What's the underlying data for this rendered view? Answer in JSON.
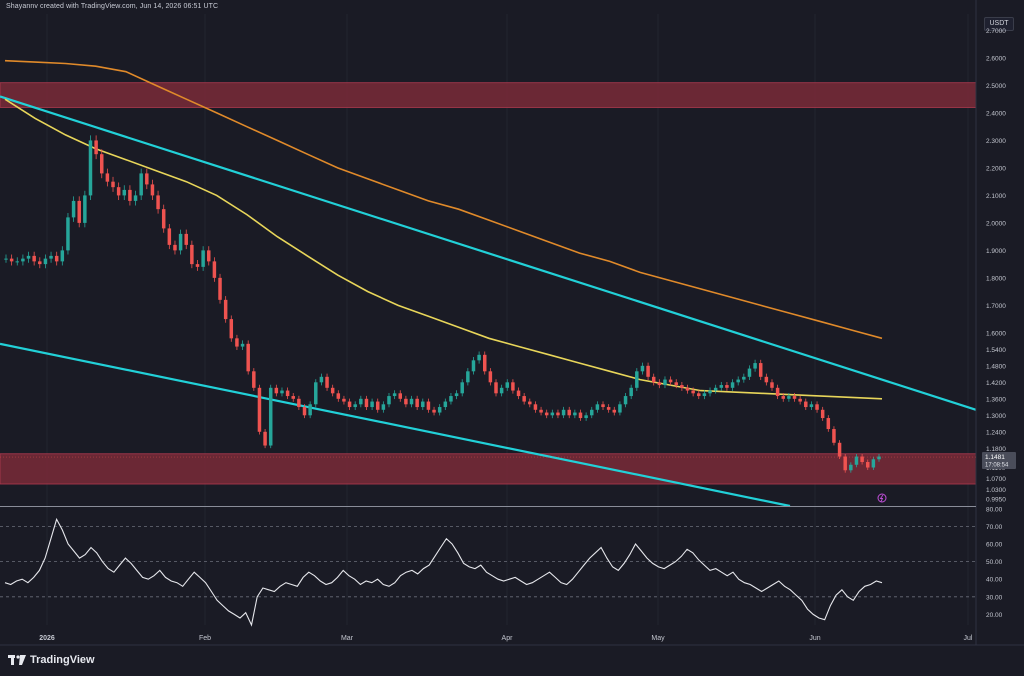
{
  "header": {
    "credit": "Shayannv created with TradingView.com, Jun 14, 2026 06:51 UTC",
    "currency": "USDT"
  },
  "brand": {
    "name": "TradingView"
  },
  "price_panel": {
    "last_price": "1.1481",
    "countdown": "17:08:54",
    "colors": {
      "up": "#26a69a",
      "down": "#ef5350",
      "zone": "#7a2a38",
      "channel": "#22d1d8",
      "ma_fast": "#e8d65a",
      "ma_slow": "#e08a2a"
    }
  },
  "chart_data": [
    {
      "type": "candlestick",
      "title": "",
      "x_ticks": [
        "2026",
        "Feb",
        "Mar",
        "Apr",
        "May",
        "Jun",
        "Jul"
      ],
      "y_ticks": [
        "2.7000",
        "2.6000",
        "2.5000",
        "2.4000",
        "2.3000",
        "2.2000",
        "2.1000",
        "2.0000",
        "1.9000",
        "1.8000",
        "1.7000",
        "1.6000",
        "1.5400",
        "1.4800",
        "1.4200",
        "1.3600",
        "1.3000",
        "1.2400",
        "1.1800",
        "1.1100",
        "1.0700",
        "1.0300",
        "0.9950"
      ],
      "ylim": [
        0.97,
        2.76
      ],
      "zones": [
        {
          "name": "supply",
          "low": 2.42,
          "high": 2.51
        },
        {
          "name": "support",
          "low": 1.05,
          "high": 1.16
        }
      ],
      "close_series": [
        1.87,
        1.86,
        1.86,
        1.87,
        1.88,
        1.86,
        1.85,
        1.87,
        1.88,
        1.86,
        1.9,
        2.02,
        2.08,
        2.0,
        2.1,
        2.3,
        2.25,
        2.18,
        2.15,
        2.13,
        2.1,
        2.12,
        2.08,
        2.1,
        2.18,
        2.14,
        2.1,
        2.05,
        1.98,
        1.92,
        1.9,
        1.96,
        1.92,
        1.85,
        1.84,
        1.9,
        1.86,
        1.8,
        1.72,
        1.65,
        1.58,
        1.55,
        1.56,
        1.46,
        1.4,
        1.24,
        1.19,
        1.4,
        1.38,
        1.39,
        1.37,
        1.36,
        1.33,
        1.3,
        1.34,
        1.42,
        1.44,
        1.4,
        1.38,
        1.36,
        1.35,
        1.33,
        1.34,
        1.36,
        1.33,
        1.35,
        1.32,
        1.34,
        1.37,
        1.38,
        1.36,
        1.34,
        1.36,
        1.33,
        1.35,
        1.32,
        1.31,
        1.33,
        1.35,
        1.37,
        1.38,
        1.42,
        1.46,
        1.5,
        1.52,
        1.46,
        1.42,
        1.38,
        1.4,
        1.42,
        1.39,
        1.37,
        1.35,
        1.34,
        1.32,
        1.31,
        1.3,
        1.31,
        1.3,
        1.32,
        1.3,
        1.31,
        1.29,
        1.3,
        1.32,
        1.34,
        1.33,
        1.32,
        1.31,
        1.34,
        1.37,
        1.4,
        1.46,
        1.48,
        1.44,
        1.42,
        1.41,
        1.43,
        1.42,
        1.41,
        1.4,
        1.39,
        1.38,
        1.37,
        1.38,
        1.39,
        1.4,
        1.41,
        1.4,
        1.42,
        1.43,
        1.44,
        1.47,
        1.49,
        1.44,
        1.42,
        1.4,
        1.37,
        1.36,
        1.37,
        1.36,
        1.35,
        1.33,
        1.34,
        1.32,
        1.29,
        1.25,
        1.2,
        1.15,
        1.1,
        1.12,
        1.15,
        1.13,
        1.11,
        1.14,
        1.15
      ],
      "ma_fast": [
        2.45,
        2.38,
        2.32,
        2.27,
        2.23,
        2.19,
        2.15,
        2.1,
        2.03,
        1.95,
        1.88,
        1.81,
        1.75,
        1.7,
        1.66,
        1.62,
        1.58,
        1.55,
        1.52,
        1.49,
        1.46,
        1.43,
        1.41,
        1.39,
        1.385,
        1.38,
        1.375,
        1.37,
        1.365,
        1.36
      ],
      "ma_slow": [
        2.59,
        2.585,
        2.58,
        2.57,
        2.55,
        2.5,
        2.45,
        2.4,
        2.35,
        2.3,
        2.25,
        2.2,
        2.16,
        2.12,
        2.08,
        2.05,
        2.01,
        1.97,
        1.93,
        1.89,
        1.86,
        1.82,
        1.79,
        1.76,
        1.73,
        1.7,
        1.67,
        1.64,
        1.61,
        1.58
      ],
      "channel_upper": [
        [
          0,
          2.46
        ],
        [
          976,
          1.32
        ]
      ],
      "channel_lower": [
        [
          0,
          1.56
        ],
        [
          790,
          0.97
        ]
      ]
    },
    {
      "type": "line",
      "title": "",
      "y_ticks": [
        "80.00",
        "70.00",
        "60.00",
        "50.00",
        "40.00",
        "30.00",
        "20.00"
      ],
      "ylim": [
        14,
        81
      ],
      "reference_levels": [
        70,
        50,
        30
      ],
      "values": [
        38,
        37,
        39,
        40,
        38,
        41,
        45,
        52,
        63,
        74,
        68,
        60,
        56,
        52,
        54,
        58,
        55,
        50,
        46,
        44,
        48,
        52,
        49,
        45,
        41,
        40,
        42,
        45,
        41,
        39,
        38,
        36,
        40,
        44,
        41,
        38,
        33,
        28,
        25,
        22,
        20,
        18,
        21,
        14,
        30,
        35,
        34,
        33,
        36,
        38,
        37,
        36,
        41,
        44,
        42,
        39,
        37,
        38,
        41,
        45,
        42,
        40,
        37,
        39,
        38,
        40,
        37,
        36,
        38,
        42,
        44,
        45,
        43,
        46,
        48,
        53,
        58,
        63,
        60,
        55,
        49,
        47,
        46,
        48,
        44,
        42,
        40,
        39,
        40,
        41,
        39,
        37,
        38,
        40,
        42,
        44,
        41,
        38,
        37,
        40,
        44,
        48,
        52,
        55,
        58,
        52,
        47,
        45,
        49,
        54,
        60,
        56,
        52,
        49,
        47,
        46,
        48,
        50,
        53,
        57,
        55,
        51,
        48,
        45,
        46,
        44,
        42,
        44,
        40,
        38,
        37,
        35,
        33,
        35,
        37,
        39,
        36,
        34,
        31,
        28,
        23,
        20,
        18,
        17,
        25,
        31,
        34,
        30,
        28,
        33,
        36,
        37,
        39,
        38
      ]
    }
  ]
}
